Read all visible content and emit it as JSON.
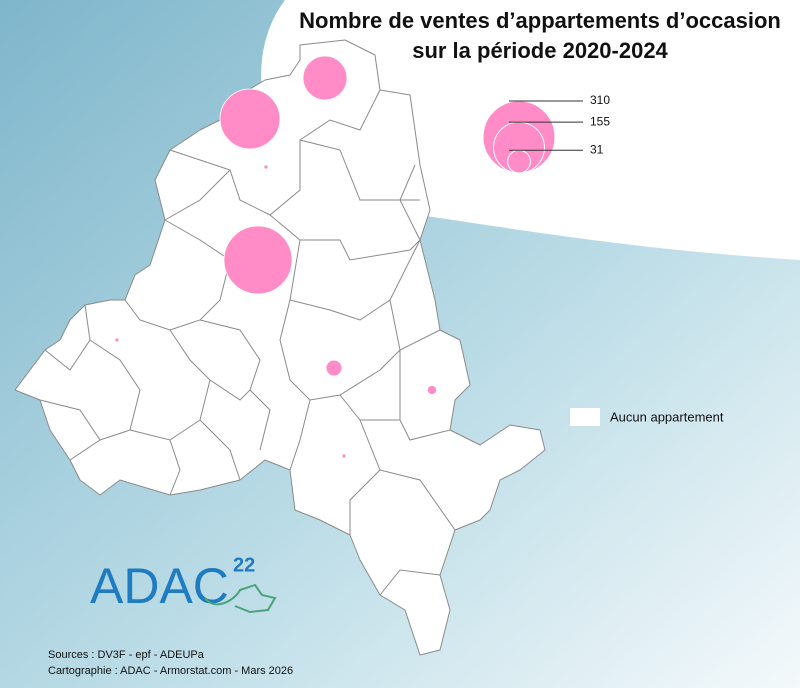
{
  "title": [
    "Nombre de ventes d’appartements d’occasion",
    "sur la période 2020-2024"
  ],
  "legend": {
    "values": [
      310,
      155,
      31
    ],
    "none_label": "Aucun appartement"
  },
  "map_values": [
    116,
    215,
    277,
    15,
    5,
    1,
    1,
    1
  ],
  "logo": {
    "text": "ADAC",
    "superscript": "22"
  },
  "sources": [
    "Sources : DV3F - epf - ADEUPa",
    "Cartographie : ADAC - Armorstat.com - Mars 2026"
  ]
}
